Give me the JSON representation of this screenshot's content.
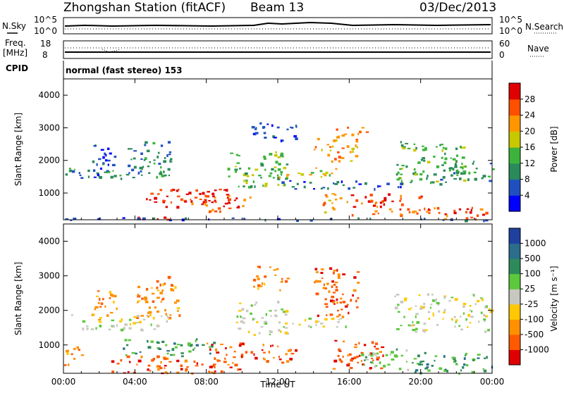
{
  "header": {
    "station": "Zhongshan Station (fitACF)",
    "beam": "Beam 13",
    "date": "03/Dec/2013"
  },
  "top_panels": {
    "nsky_label": "N.Sky",
    "nsearch_label": "N.Search",
    "nsky_ticks": [
      "10^5",
      "10^0"
    ],
    "nsearch_ticks": [
      "10^5",
      "10^0"
    ],
    "freq_label_line1": "Freq.",
    "freq_label_line2": "[MHz]",
    "freq_ticks": [
      "18",
      "8"
    ],
    "nave_label": "Nave",
    "nave_ticks": [
      "60",
      "0"
    ],
    "cpid_label": "CPID",
    "cpid_text": "normal (fast stereo) 153"
  },
  "chart_data": [
    {
      "type": "heatmap",
      "title": "Power",
      "ylabel": "Slant Range [km]",
      "ylim": [
        180,
        4500
      ],
      "xlim": [
        0,
        24
      ],
      "y_ticks": [
        "1000",
        "2000",
        "3000",
        "4000"
      ],
      "colorbar_label": "Power [dB]",
      "colorbar_ticks": [
        "4",
        "8",
        "12",
        "16",
        "20",
        "24",
        "28"
      ],
      "colors": [
        "#0000ff",
        "#2050c0",
        "#2a8a5a",
        "#3cb43c",
        "#c8c800",
        "#ff9600",
        "#ff5000",
        "#e00000"
      ],
      "blobs": [
        {
          "t0": 0.0,
          "t1": 6.0,
          "r0": 1450,
          "r1": 1800,
          "level": 2
        },
        {
          "t0": 1.6,
          "t1": 3.0,
          "r0": 1500,
          "r1": 2500,
          "level": 1
        },
        {
          "t0": 3.5,
          "t1": 6.0,
          "r0": 1700,
          "r1": 2600,
          "level": 2
        },
        {
          "t0": 4.6,
          "t1": 9.4,
          "r0": 600,
          "r1": 1150,
          "level": 7
        },
        {
          "t0": 6.5,
          "t1": 10.5,
          "r0": 450,
          "r1": 950,
          "level": 6
        },
        {
          "t0": 3.5,
          "t1": 6.5,
          "r0": 200,
          "r1": 320,
          "level": 7
        },
        {
          "t0": 9.0,
          "t1": 12.5,
          "r0": 1200,
          "r1": 2300,
          "level": 3
        },
        {
          "t0": 10.5,
          "t1": 13.0,
          "r0": 2600,
          "r1": 3200,
          "level": 1
        },
        {
          "t0": 12.0,
          "t1": 15.5,
          "r0": 1500,
          "r1": 1800,
          "level": 4
        },
        {
          "t0": 14.0,
          "t1": 16.5,
          "r0": 2000,
          "r1": 2700,
          "level": 5
        },
        {
          "t0": 15.0,
          "t1": 17.0,
          "r0": 2700,
          "r1": 3100,
          "level": 5
        },
        {
          "t0": 14.5,
          "t1": 16.0,
          "r0": 400,
          "r1": 1000,
          "level": 5
        },
        {
          "t0": 16.0,
          "t1": 20.0,
          "r0": 350,
          "r1": 1000,
          "level": 6
        },
        {
          "t0": 18.5,
          "t1": 22.5,
          "r0": 1300,
          "r1": 2600,
          "level": 3
        },
        {
          "t0": 21.0,
          "t1": 24.0,
          "r0": 1400,
          "r1": 2000,
          "level": 2
        },
        {
          "t0": 20.0,
          "t1": 24.0,
          "r0": 200,
          "r1": 600,
          "level": 6
        },
        {
          "t0": 0.0,
          "t1": 24.0,
          "r0": 180,
          "r1": 260,
          "level": 1
        },
        {
          "t0": 12.0,
          "t1": 19.0,
          "r0": 1150,
          "r1": 1400,
          "level": 1
        }
      ]
    },
    {
      "type": "heatmap",
      "title": "Velocity",
      "ylabel": "Slant Range [km]",
      "xlabel": "Time UT",
      "ylim": [
        180,
        4500
      ],
      "xlim": [
        0,
        24
      ],
      "y_ticks": [
        "1000",
        "2000",
        "3000",
        "4000"
      ],
      "x_ticks": [
        "00:00",
        "04:00",
        "08:00",
        "12:00",
        "16:00",
        "20:00",
        "00:00"
      ],
      "colorbar_label": "Velocity [m s⁻¹]",
      "colorbar_ticks": [
        "1000",
        "500",
        "100",
        "25",
        "-25",
        "-100",
        "-500",
        "-1000"
      ],
      "colors": [
        "#2040a0",
        "#2a6e8c",
        "#2e8a5a",
        "#5cc83c",
        "#c8c8c0",
        "#ffc800",
        "#ff9000",
        "#ff5a00",
        "#e00000"
      ],
      "blobs": [
        {
          "t0": 0.0,
          "t1": 6.0,
          "r0": 1450,
          "r1": 1900,
          "level": 4
        },
        {
          "t0": 1.5,
          "t1": 3.0,
          "r0": 1700,
          "r1": 2600,
          "level": 6
        },
        {
          "t0": 4.0,
          "t1": 6.5,
          "r0": 1800,
          "r1": 2800,
          "level": 6
        },
        {
          "t0": 3.2,
          "t1": 8.5,
          "r0": 700,
          "r1": 1200,
          "level": 2
        },
        {
          "t0": 2.5,
          "t1": 10.0,
          "r0": 200,
          "r1": 700,
          "level": 7
        },
        {
          "t0": 8.0,
          "t1": 13.0,
          "r0": 500,
          "r1": 1100,
          "level": 7
        },
        {
          "t0": 9.5,
          "t1": 12.5,
          "r0": 1300,
          "r1": 2300,
          "level": 4
        },
        {
          "t0": 10.5,
          "t1": 12.5,
          "r0": 2600,
          "r1": 3300,
          "level": 6
        },
        {
          "t0": 12.5,
          "t1": 16.0,
          "r0": 1500,
          "r1": 1800,
          "level": 4
        },
        {
          "t0": 14.0,
          "t1": 16.5,
          "r0": 1800,
          "r1": 3300,
          "level": 7
        },
        {
          "t0": 15.0,
          "t1": 18.0,
          "r0": 300,
          "r1": 1200,
          "level": 7
        },
        {
          "t0": 16.5,
          "t1": 20.0,
          "r0": 300,
          "r1": 900,
          "level": 3
        },
        {
          "t0": 19.5,
          "t1": 24.0,
          "r0": 200,
          "r1": 800,
          "level": 2
        },
        {
          "t0": 18.5,
          "t1": 24.0,
          "r0": 1400,
          "r1": 2500,
          "level": 4
        },
        {
          "t0": 0.0,
          "t1": 1.0,
          "r0": 400,
          "r1": 1000,
          "level": 6
        },
        {
          "t0": 5.0,
          "t1": 6.0,
          "r0": 2600,
          "r1": 3100,
          "level": 7
        }
      ]
    }
  ]
}
